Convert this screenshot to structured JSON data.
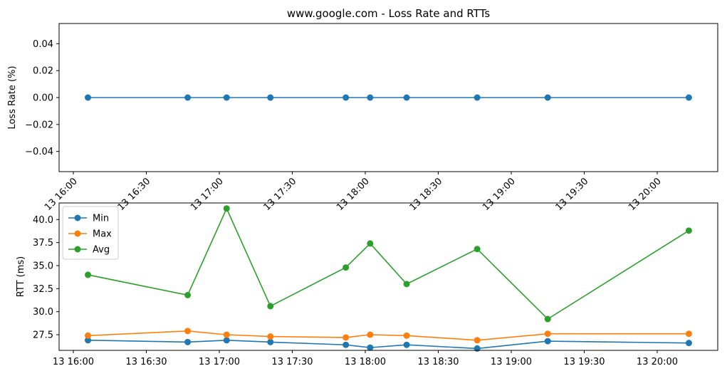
{
  "chart_data": [
    {
      "type": "line",
      "title": "www.google.com - Loss Rate and RTTs",
      "xlabel": "",
      "ylabel": "Loss Rate (%)",
      "ylim": [
        -0.055,
        0.055
      ],
      "yticks": [
        -0.04,
        -0.02,
        0.0,
        0.02,
        0.04
      ],
      "ytick_labels": [
        "−0.04",
        "−0.02",
        "0.00",
        "0.02",
        "0.04"
      ],
      "xlim": [
        "16:00",
        "20:00"
      ],
      "xticks": [
        "16:00",
        "16:30",
        "17:00",
        "17:30",
        "18:00",
        "18:30",
        "19:00",
        "19:30",
        "20:00"
      ],
      "xtick_labels": [
        "13 16:00",
        "13 16:30",
        "13 17:00",
        "13 17:30",
        "13 18:00",
        "13 18:30",
        "13 19:00",
        "13 19:30",
        "13 20:00"
      ],
      "x": [
        "16:06",
        "16:47",
        "17:03",
        "17:21",
        "17:52",
        "18:02",
        "18:17",
        "18:46",
        "19:15",
        "20:13"
      ],
      "series": [
        {
          "values": [
            0,
            0,
            0,
            0,
            0,
            0,
            0,
            0,
            0,
            0
          ],
          "color": "#1f77b4"
        }
      ],
      "grid": false
    },
    {
      "type": "line",
      "title": "",
      "xlabel": "",
      "ylabel": "RTT (ms)",
      "ylim": [
        25.8,
        41.8
      ],
      "yticks": [
        27.5,
        30.0,
        32.5,
        35.0,
        37.5,
        40.0
      ],
      "ytick_labels": [
        "27.5",
        "30.0",
        "32.5",
        "35.0",
        "37.5",
        "40.0"
      ],
      "xticks": [
        "16:00",
        "16:30",
        "17:00",
        "17:30",
        "18:00",
        "18:30",
        "19:00",
        "19:30",
        "20:00"
      ],
      "xtick_labels": [
        "13 16:00",
        "13 16:30",
        "13 17:00",
        "13 17:30",
        "13 18:00",
        "13 18:30",
        "13 19:00",
        "13 19:30",
        "13 20:00"
      ],
      "x": [
        "16:06",
        "16:47",
        "17:03",
        "17:21",
        "17:52",
        "18:02",
        "18:17",
        "18:46",
        "19:15",
        "20:13"
      ],
      "series": [
        {
          "name": "Min",
          "color": "#1f77b4",
          "values": [
            26.9,
            26.7,
            26.9,
            26.7,
            26.4,
            26.1,
            26.4,
            26.0,
            26.8,
            26.6
          ]
        },
        {
          "name": "Max",
          "color": "#ff7f0e",
          "values": [
            27.4,
            27.9,
            27.5,
            27.3,
            27.2,
            27.5,
            27.4,
            26.9,
            27.6,
            27.6
          ]
        },
        {
          "name": "Avg",
          "color": "#2ca02c",
          "values": [
            34.0,
            31.8,
            41.2,
            30.6,
            34.8,
            37.4,
            33.0,
            36.8,
            29.2,
            38.8
          ]
        }
      ],
      "legend": "top-left",
      "grid": false
    }
  ]
}
